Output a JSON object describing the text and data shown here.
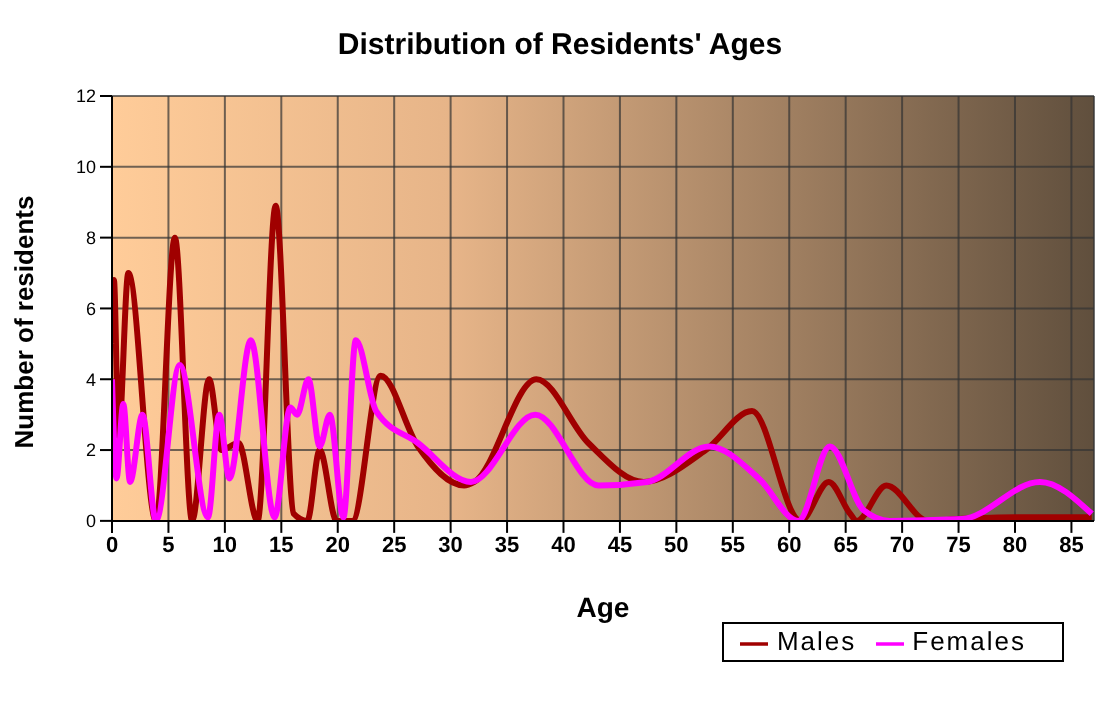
{
  "chart_data": {
    "type": "line",
    "title": "Distribution of Residents' Ages",
    "xlabel": "Age",
    "ylabel": "Number of residents",
    "xlim": [
      0,
      87
    ],
    "xticks": [
      0,
      5,
      10,
      15,
      20,
      25,
      30,
      35,
      40,
      45,
      50,
      55,
      60,
      65,
      70,
      75,
      80,
      85
    ],
    "ylim": [
      0,
      12
    ],
    "yticks": [
      0,
      2,
      4,
      6,
      8,
      10,
      12
    ],
    "grid": true,
    "legend": "bottom right",
    "marker": "none",
    "series": [
      {
        "name": "Males",
        "color": "#a00000",
        "x": [
          0,
          0.17,
          0.58,
          1.45,
          3.9,
          5.57,
          7.1,
          8.6,
          9.7,
          11.2,
          12.9,
          14.5,
          16.1,
          17.3,
          18.4,
          19.9,
          21.3,
          23.8,
          27.1,
          31.2,
          32.1,
          37.6,
          42.2,
          47.1,
          52.6,
          56.7,
          61,
          63.5,
          65.4,
          66,
          68.6,
          72.3,
          75,
          80,
          86.8
        ],
        "values": [
          5,
          6.8,
          2.4,
          7,
          0,
          8,
          0,
          4,
          2,
          2.2,
          0,
          8.9,
          0.2,
          0,
          2,
          0,
          0,
          4.1,
          2.1,
          1,
          1.1,
          4,
          2.2,
          1.1,
          2,
          3.1,
          0,
          1.1,
          0.2,
          0,
          1,
          0,
          0.05,
          0.1,
          0.1
        ]
      },
      {
        "name": "Females",
        "color": "#ff00ff",
        "x": [
          0,
          0.4,
          1,
          1.6,
          2.7,
          3.9,
          6,
          8.5,
          9.5,
          10.4,
          12.3,
          14.4,
          15.8,
          16.4,
          17.4,
          18.4,
          19.3,
          20.5,
          21.6,
          23.4,
          27.1,
          31.8,
          37.5,
          43.1,
          47.4,
          52.9,
          57.3,
          60.8,
          63.6,
          66.6,
          68.9,
          75.3,
          82.2,
          86.8
        ],
        "values": [
          4,
          1.2,
          3.3,
          1.1,
          3,
          0,
          4.4,
          0.1,
          3,
          1.2,
          5.1,
          0.1,
          3.2,
          3,
          4,
          2.1,
          3,
          0.1,
          5.1,
          3.1,
          2.2,
          1.1,
          3,
          1,
          1.1,
          2.1,
          1.2,
          0,
          2.1,
          0.3,
          0,
          0.05,
          1.1,
          0.2
        ]
      }
    ]
  }
}
